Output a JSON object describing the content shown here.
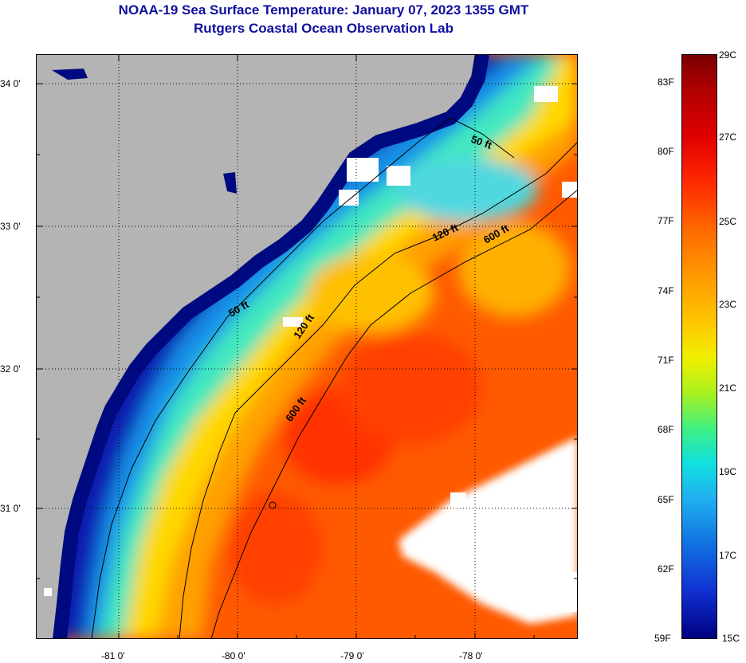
{
  "title": "NOAA-19 Sea Surface Temperature:  January 07, 2023 1355 GMT",
  "subtitle": "Rutgers Coastal Ocean Observation Lab",
  "colors": {
    "land": "#b4b4b4",
    "title": "#1010a0",
    "warm": "#ff5000",
    "cool": "#1020c0",
    "cloud": "#ffffff"
  },
  "map": {
    "lat_ticks": [
      "34 0'",
      "33 0'",
      "32 0'",
      "31 0'"
    ],
    "lon_ticks": [
      "-81 0'",
      "-80 0'",
      "-79 0'",
      "-78 0'"
    ],
    "lon_range": [
      -81.65,
      -77.1
    ],
    "lat_range": [
      30.15,
      34.2
    ],
    "isobaths": [
      {
        "label": "50 ft"
      },
      {
        "label": "120 ft"
      },
      {
        "label": "600 ft"
      },
      {
        "label": "50 ft"
      },
      {
        "label": "120 ft"
      },
      {
        "label": "600 ft"
      }
    ]
  },
  "colorbar": {
    "fahrenheit": [
      "83F",
      "80F",
      "77F",
      "74F",
      "71F",
      "68F",
      "65F",
      "62F",
      "59F"
    ],
    "celsius": [
      "29C",
      "27C",
      "25C",
      "23C",
      "21C",
      "19C",
      "17C",
      "15C"
    ]
  }
}
